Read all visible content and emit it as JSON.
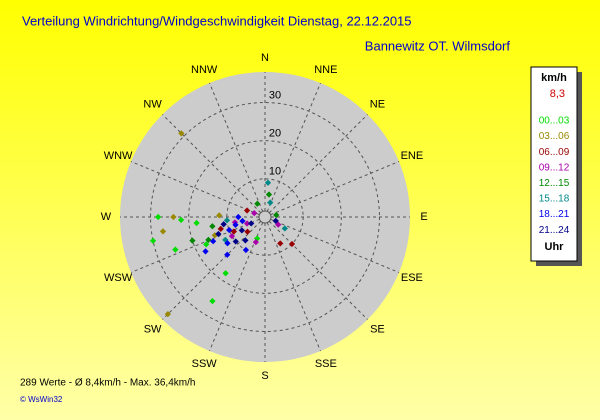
{
  "chart_data": {
    "type": "polar-scatter",
    "title": "Verteilung Windrichtung/Windgeschwindigkeit  Dienstag, 22.12.2015",
    "subtitle": "Bannewitz OT. Wilmsdorf",
    "directions": [
      "N",
      "NNE",
      "NE",
      "ENE",
      "E",
      "ESE",
      "SE",
      "SSE",
      "S",
      "SSW",
      "SW",
      "WSW",
      "W",
      "WNW",
      "NW",
      "NNW"
    ],
    "rlim": [
      0,
      38
    ],
    "rticks": [
      10,
      20,
      30
    ],
    "legend_title": "km/h",
    "legend_current": "8,3",
    "legend_footer": "Uhr",
    "series": [
      {
        "name": "00...03",
        "color": "#00dd00",
        "direction": [
          270,
          268,
          265,
          258,
          250,
          245,
          212,
          215,
          200
        ],
        "values": [
          28,
          22,
          18,
          30,
          25,
          17,
          26,
          18,
          6
        ]
      },
      {
        "name": "03...06",
        "color": "#998800",
        "direction": [
          315,
          225,
          270,
          262,
          250,
          272
        ],
        "values": [
          31,
          36,
          24,
          27,
          14,
          12
        ]
      },
      {
        "name": "06...09",
        "color": "#990000",
        "direction": [
          255,
          245,
          135,
          150,
          230,
          290
        ],
        "values": [
          12,
          9,
          10,
          8,
          6,
          5
        ]
      },
      {
        "name": "09...12",
        "color": "#aa00aa",
        "direction": [
          260,
          200,
          250,
          120,
          290,
          240
        ],
        "values": [
          8,
          7,
          5,
          4,
          3,
          10
        ]
      },
      {
        "name": "12...15",
        "color": "#008800",
        "direction": [
          252,
          248,
          10,
          260,
          330,
          80
        ],
        "values": [
          20,
          16,
          6,
          14,
          4,
          3
        ]
      },
      {
        "name": "15...18",
        "color": "#008888",
        "direction": [
          5,
          240,
          120,
          265,
          20
        ],
        "values": [
          9,
          12,
          6,
          10,
          4
        ]
      },
      {
        "name": "18...21",
        "color": "#0000ee",
        "direction": [
          240,
          245,
          235,
          250,
          255,
          225,
          260,
          210,
          270
        ],
        "values": [
          18,
          15,
          12,
          10,
          8,
          14,
          6,
          10,
          7
        ]
      },
      {
        "name": "21...24",
        "color": "#000088",
        "direction": [
          230,
          240,
          250,
          245,
          220,
          260,
          110
        ],
        "values": [
          10,
          7,
          13,
          4,
          8,
          11,
          3
        ]
      }
    ],
    "footer": "289 Werte   -   Ø 8,4km/h   -   Max. 36,4km/h",
    "credit": "© WsWin32"
  }
}
